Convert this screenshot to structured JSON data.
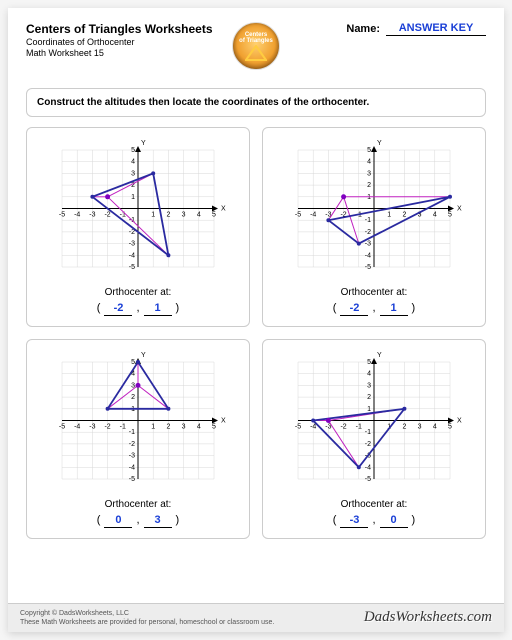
{
  "header": {
    "title": "Centers of Triangles Worksheets",
    "subtitle": "Coordinates of Orthocenter",
    "worksheet_number": "Math Worksheet 15",
    "logo_line1": "Centers",
    "logo_line2": "of Triangles",
    "name_label": "Name:",
    "name_value": "ANSWER KEY"
  },
  "instruction": "Construct the altitudes then locate the coordinates of the orthocenter.",
  "graph_style": {
    "xmin": -5,
    "xmax": 5,
    "ymin": -5,
    "ymax": 5,
    "tick_step": 1,
    "grid_color": "#d8d8d8",
    "axis_color": "#000000",
    "triangle_stroke": "#2a2aa0",
    "triangle_fill": "none",
    "altitude_color": "#c020c0",
    "ortho_point_color": "#8000c0",
    "axis_label_font": 7
  },
  "problems": [
    {
      "triangle": [
        [
          -3,
          1
        ],
        [
          2,
          -4
        ],
        [
          1,
          3
        ]
      ],
      "orthocenter": [
        -2,
        1
      ],
      "answer_x": "-2",
      "answer_y": "1"
    },
    {
      "triangle": [
        [
          -3,
          -1
        ],
        [
          -1,
          -3
        ],
        [
          5,
          1
        ]
      ],
      "orthocenter": [
        -2,
        1
      ],
      "answer_x": "-2",
      "answer_y": "1"
    },
    {
      "triangle": [
        [
          -2,
          1
        ],
        [
          2,
          1
        ],
        [
          0,
          5
        ]
      ],
      "orthocenter": [
        0,
        3
      ],
      "answer_x": "0",
      "answer_y": "3"
    },
    {
      "triangle": [
        [
          -4,
          0
        ],
        [
          2,
          1
        ],
        [
          -1,
          -4
        ]
      ],
      "orthocenter": [
        -3,
        0
      ],
      "answer_x": "-3",
      "answer_y": "0"
    }
  ],
  "labels": {
    "orthocenter_at": "Orthocenter at:",
    "x_axis": "X",
    "y_axis": "Y"
  },
  "footer": {
    "copyright_line1": "Copyright © DadsWorksheets, LLC",
    "copyright_line2": "These Math Worksheets are provided for personal, homeschool or classroom use.",
    "brand": "DadsWorksheets.com"
  },
  "colors": {
    "answer_text": "#1a3fd6",
    "page_bg": "#ffffff",
    "outer_bg": "#f5f5f5",
    "border": "#cccccc",
    "footer_bg": "#ededed"
  }
}
